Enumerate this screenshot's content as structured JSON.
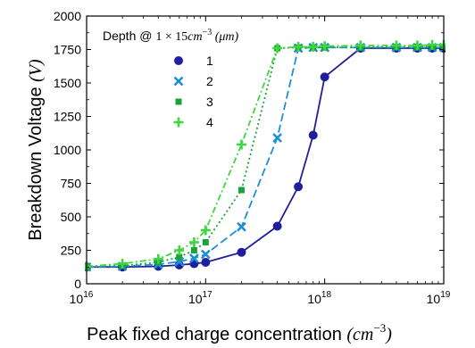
{
  "chart_data": {
    "type": "line",
    "xscale": "log",
    "xlim": [
      1e+16,
      1e+19
    ],
    "ylim": [
      0,
      2000
    ],
    "xlabel": {
      "text": "Peak fixed charge concentration",
      "unit": "(cm",
      "unit_exp": "−3",
      "unit_close": ")"
    },
    "ylabel": {
      "text": "Breakdown Voltage",
      "unit": "(V)"
    },
    "y_ticks": [
      "0",
      "250",
      "500",
      "750",
      "1000",
      "1250",
      "1500",
      "1750",
      "2000"
    ],
    "x_ticks": [
      {
        "base": "10",
        "exp": "16"
      },
      {
        "base": "10",
        "exp": "17"
      },
      {
        "base": "10",
        "exp": "18"
      },
      {
        "base": "10",
        "exp": "19"
      }
    ],
    "legend": {
      "title_prefix": "Depth @ ",
      "title_math": "1 × 15",
      "title_unit": "cm",
      "title_exp": "−3",
      "title_suffix": " (μm)",
      "placement": "top-left"
    },
    "series": [
      {
        "name": "1",
        "color": "#1f1f9e",
        "marker": "circle",
        "dash": "solid",
        "x": [
          1e+16,
          2e+16,
          4e+16,
          6e+16,
          8e+16,
          1e+17,
          2e+17,
          4e+17,
          6e+17,
          8e+17,
          1e+18,
          2e+18,
          4e+18,
          6e+18,
          8e+18,
          1e+19
        ],
        "y": [
          125,
          125,
          130,
          140,
          150,
          160,
          235,
          430,
          725,
          1110,
          1545,
          1760,
          1760,
          1760,
          1760,
          1760
        ]
      },
      {
        "name": "2",
        "color": "#1e8fd6",
        "marker": "x",
        "dash": "dashed",
        "x": [
          1e+16,
          2e+16,
          4e+16,
          6e+16,
          8e+16,
          1e+17,
          2e+17,
          4e+17,
          6e+17,
          8e+17,
          1e+18,
          2e+18,
          4e+18,
          6e+18,
          8e+18,
          1e+19
        ],
        "y": [
          125,
          130,
          145,
          165,
          190,
          220,
          425,
          1090,
          1760,
          1765,
          1765,
          1765,
          1765,
          1765,
          1765,
          1765
        ]
      },
      {
        "name": "3",
        "color": "#1aa33a",
        "marker": "square",
        "dash": "dotted",
        "x": [
          1e+16,
          2e+16,
          4e+16,
          6e+16,
          8e+16,
          1e+17,
          2e+17,
          4e+17,
          6e+17,
          8e+17,
          1e+18,
          2e+18,
          4e+18,
          6e+18,
          8e+18,
          1e+19
        ],
        "y": [
          125,
          135,
          160,
          200,
          250,
          310,
          700,
          1760,
          1765,
          1765,
          1765,
          1765,
          1770,
          1770,
          1770,
          1770
        ]
      },
      {
        "name": "4",
        "color": "#3fd63f",
        "marker": "plus",
        "dash": "dashdot",
        "x": [
          1e+16,
          2e+16,
          4e+16,
          6e+16,
          8e+16,
          1e+17,
          2e+17,
          4e+17,
          6e+17,
          8e+17,
          1e+18,
          2e+18,
          4e+18,
          6e+18,
          8e+18,
          1e+19
        ],
        "y": [
          130,
          150,
          185,
          250,
          310,
          400,
          1040,
          1760,
          1770,
          1770,
          1775,
          1780,
          1780,
          1780,
          1785,
          1785
        ]
      }
    ]
  }
}
